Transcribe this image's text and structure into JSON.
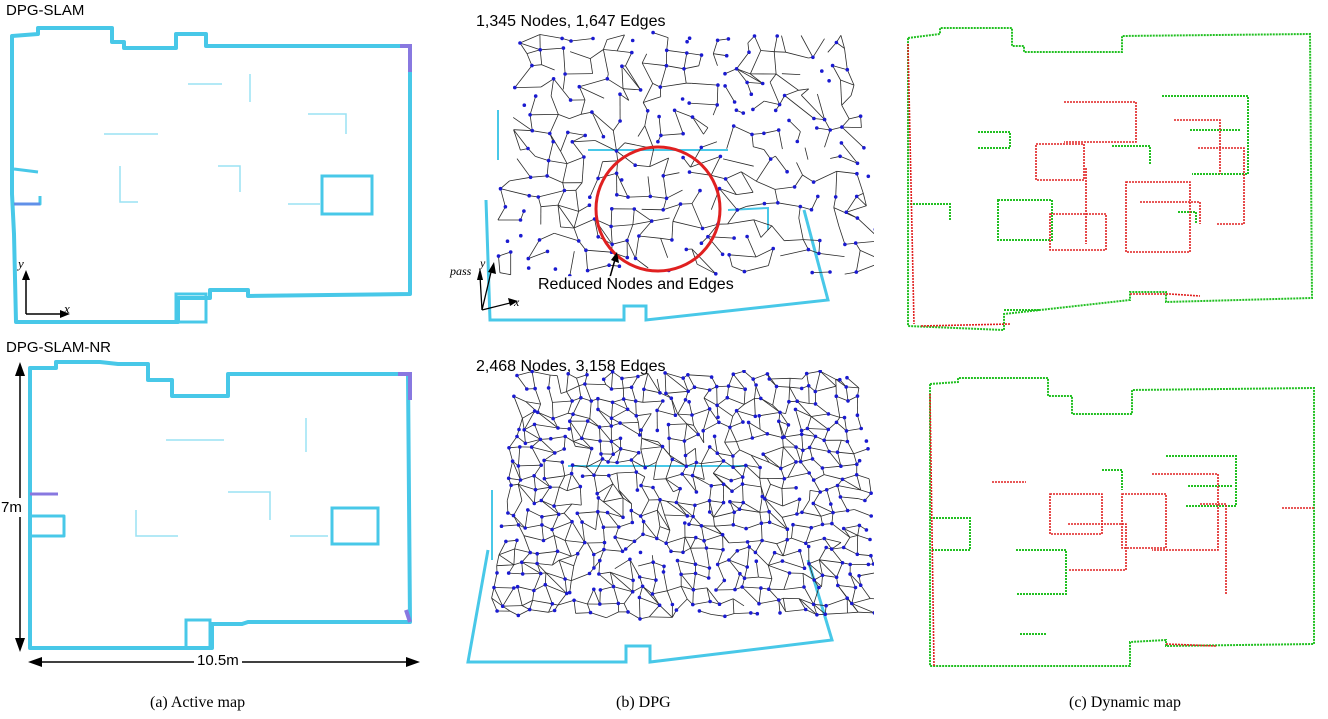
{
  "rows": [
    {
      "label": "DPG-SLAM",
      "dpg_title": "1,345 Nodes, 1,647 Edges"
    },
    {
      "label": "DPG-SLAM-NR",
      "dpg_title": "2,468 Nodes, 3,158 Edges"
    }
  ],
  "captions": [
    "(a) Active map",
    "(b) DPG",
    "(c) Dynamic map"
  ],
  "annotations": {
    "reduced": "Reduced Nodes and Edges",
    "dim_height": "7m",
    "dim_width": "10.5m",
    "axis_x": "x",
    "axis_y": "y",
    "axis_pass": "pass"
  },
  "colors": {
    "map_wall": "#48c8e8",
    "map_wall_dark": "#8878e0",
    "graph_node": "#1a1ad0",
    "graph_edge": "#2a2a2a",
    "circle": "#e02020",
    "dyn_green": "#22c022",
    "dyn_red": "#e02020"
  }
}
